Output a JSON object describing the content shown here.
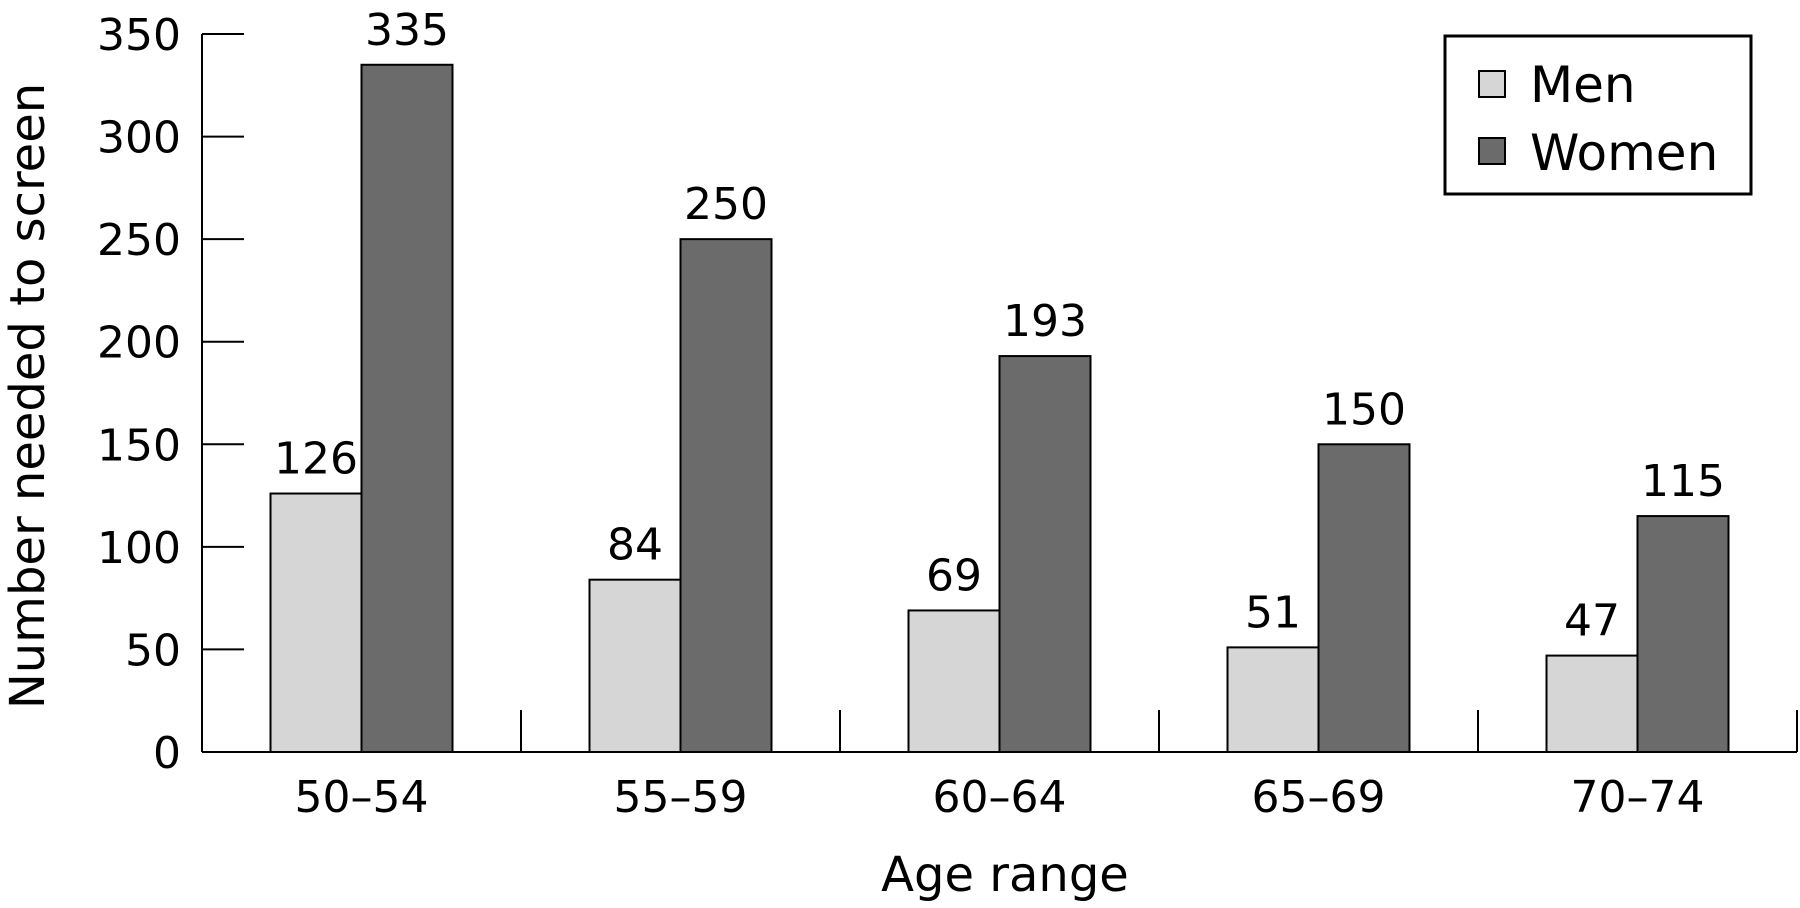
{
  "chart_data": {
    "type": "bar",
    "categories": [
      "50–54",
      "55–59",
      "60–64",
      "65–69",
      "70–74"
    ],
    "series": [
      {
        "name": "Men",
        "values": [
          126,
          84,
          69,
          51,
          47
        ],
        "color": "#d6d6d6"
      },
      {
        "name": "Women",
        "values": [
          335,
          250,
          193,
          150,
          115
        ],
        "color": "#6b6b6b"
      }
    ],
    "title": "",
    "xlabel": "Age range",
    "ylabel": "Number needed to screen",
    "ylim": [
      0,
      350
    ],
    "yticks": [
      0,
      50,
      100,
      150,
      200,
      250,
      300,
      350
    ],
    "grid": false,
    "legend_position": "top-right",
    "data_labels": true
  }
}
